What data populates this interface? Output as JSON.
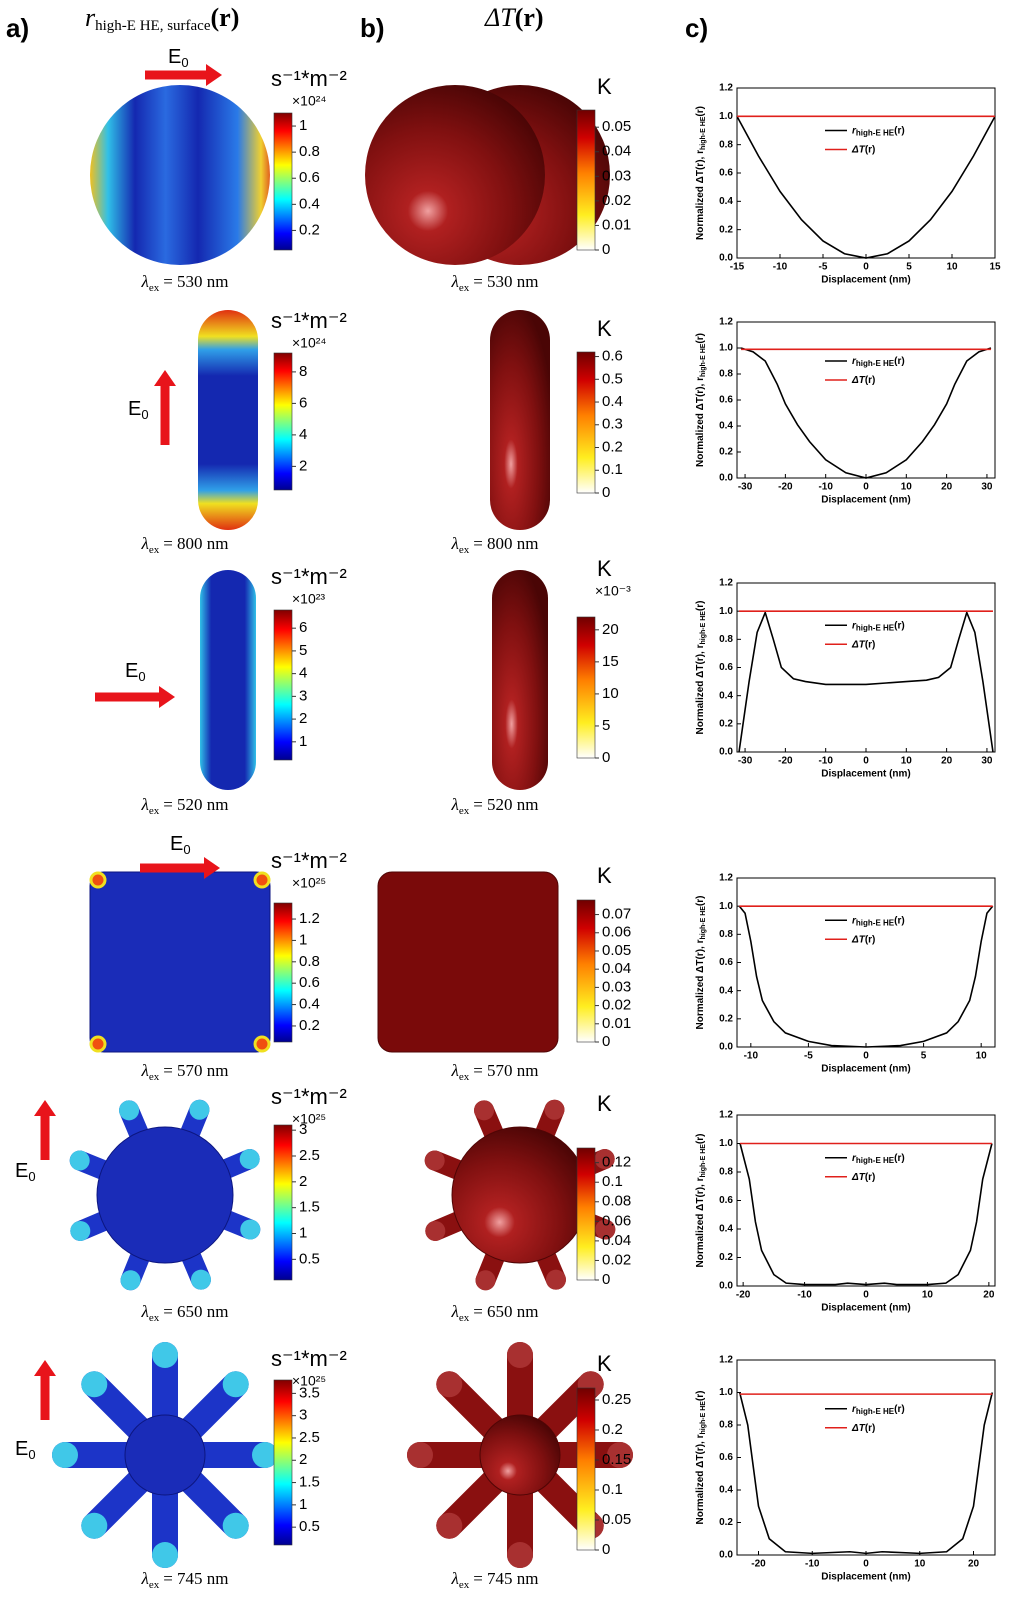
{
  "panel_labels": [
    "a)",
    "b)",
    "c)"
  ],
  "column_a_title": {
    "symbol": "r",
    "sub": "high-E HE, surface",
    "arg": "(r)"
  },
  "column_b_title": {
    "symbol": "ΔT",
    "arg": "(r)"
  },
  "field_label": {
    "base": "E",
    "sub": "0"
  },
  "rows": [
    {
      "wavelength": {
        "symbol": "λ",
        "sub": "ex",
        "rest": "= 530 nm"
      },
      "colorbar_a": {
        "unit": "s⁻¹*m⁻²",
        "multiplier": "×10²⁴",
        "clim": [
          0.05,
          1.1
        ],
        "ticks": [
          0.2,
          0.4,
          0.6,
          0.8,
          1
        ]
      },
      "colorbar_b": {
        "unit": "K",
        "clim": [
          0,
          0.057
        ],
        "ticks": [
          0,
          0.01,
          0.02,
          0.03,
          0.04,
          0.05
        ]
      }
    },
    {
      "wavelength": {
        "symbol": "λ",
        "sub": "ex",
        "rest": "= 800 nm"
      },
      "colorbar_a": {
        "unit": "s⁻¹*m⁻²",
        "multiplier": "×10²⁴",
        "clim": [
          0.5,
          9.2
        ],
        "ticks": [
          2,
          4,
          6,
          8
        ]
      },
      "colorbar_b": {
        "unit": "K",
        "clim": [
          0,
          0.62
        ],
        "ticks": [
          0,
          0.1,
          0.2,
          0.3,
          0.4,
          0.5,
          0.6
        ]
      }
    },
    {
      "wavelength": {
        "symbol": "λ",
        "sub": "ex",
        "rest": "= 520 nm"
      },
      "colorbar_a": {
        "unit": "s⁻¹*m⁻²",
        "multiplier": "×10²³",
        "clim": [
          0.2,
          6.8
        ],
        "ticks": [
          1,
          2,
          3,
          4,
          5,
          6
        ]
      },
      "colorbar_b": {
        "unit": "K",
        "multiplier": "×10⁻³",
        "clim": [
          0,
          22
        ],
        "ticks": [
          0,
          5,
          10,
          15,
          20
        ]
      }
    },
    {
      "wavelength": {
        "symbol": "λ",
        "sub": "ex",
        "rest": "= 570 nm"
      },
      "colorbar_a": {
        "unit": "s⁻¹*m⁻²",
        "multiplier": "×10²⁵",
        "clim": [
          0.05,
          1.35
        ],
        "ticks": [
          0.2,
          0.4,
          0.6,
          0.8,
          1,
          1.2
        ]
      },
      "colorbar_b": {
        "unit": "K",
        "clim": [
          0,
          0.078
        ],
        "ticks": [
          0,
          0.01,
          0.02,
          0.03,
          0.04,
          0.05,
          0.06,
          0.07
        ]
      }
    },
    {
      "wavelength": {
        "symbol": "λ",
        "sub": "ex",
        "rest": "= 650 nm"
      },
      "colorbar_a": {
        "unit": "s⁻¹*m⁻²",
        "multiplier": "×10²⁵",
        "clim": [
          0.1,
          3.1
        ],
        "ticks": [
          0.5,
          1,
          1.5,
          2,
          2.5,
          3
        ]
      },
      "colorbar_b": {
        "unit": "K",
        "clim": [
          0,
          0.135
        ],
        "ticks": [
          0,
          0.02,
          0.04,
          0.06,
          0.08,
          0.1,
          0.12
        ]
      }
    },
    {
      "wavelength": {
        "symbol": "λ",
        "sub": "ex",
        "rest": "= 745 nm"
      },
      "colorbar_a": {
        "unit": "s⁻¹*m⁻²",
        "multiplier": "×10²⁵",
        "clim": [
          0.1,
          3.8
        ],
        "ticks": [
          0.5,
          1,
          1.5,
          2,
          2.5,
          3,
          3.5
        ]
      },
      "colorbar_b": {
        "unit": "K",
        "clim": [
          0,
          0.27
        ],
        "ticks": [
          0,
          0.05,
          0.1,
          0.15,
          0.2,
          0.25
        ]
      }
    }
  ],
  "chart_data": [
    {
      "type": "line",
      "xlabel": "Displacement (nm)",
      "ylabel": {
        "text": "Normalized ΔT(r), r",
        "sub": "high-E HE",
        "rest": "(r)"
      },
      "x": [
        -15,
        -12.5,
        -10,
        -7.5,
        -5,
        -2.5,
        0,
        2.5,
        5,
        7.5,
        10,
        12.5,
        15
      ],
      "xlim": [
        -15,
        15
      ],
      "xticks": [
        -15,
        -10,
        -5,
        0,
        5,
        10,
        15
      ],
      "ylim": [
        0,
        1.2
      ],
      "yticks": [
        {
          "value": 0,
          "label": "0.0"
        },
        0.2,
        0.4,
        0.6,
        0.8,
        {
          "value": 1,
          "label": "1.0"
        },
        1.2
      ],
      "legend": "upper right",
      "series": [
        {
          "name": {
            "base": "r",
            "sub": "high-E HE",
            "arg": "(r)"
          },
          "color": "#000000",
          "values": [
            1.0,
            0.72,
            0.47,
            0.27,
            0.12,
            0.03,
            0,
            0.03,
            0.12,
            0.27,
            0.47,
            0.72,
            1.0
          ]
        },
        {
          "name": {
            "base": "ΔT",
            "arg": "(r)"
          },
          "color": "#e0201b",
          "values": [
            1,
            1,
            1,
            1,
            1,
            1,
            1,
            1,
            1,
            1,
            1,
            1,
            1
          ]
        }
      ]
    },
    {
      "type": "line",
      "xlabel": "Displacement (nm)",
      "ylabel": {
        "text": "Normalized ΔT(r), r",
        "sub": "high-E HE",
        "rest": "(r)"
      },
      "x": [
        -31,
        -28,
        -25,
        -22,
        -20,
        -17,
        -14,
        -10,
        -5,
        0,
        5,
        10,
        14,
        17,
        20,
        22,
        25,
        28,
        31
      ],
      "xlim": [
        -32,
        32
      ],
      "xticks": [
        -30,
        -20,
        -10,
        0,
        10,
        20,
        30
      ],
      "ylim": [
        0,
        1.2
      ],
      "yticks": [
        {
          "value": 0,
          "label": "0.0"
        },
        0.2,
        0.4,
        0.6,
        0.8,
        {
          "value": 1,
          "label": "1.0"
        },
        1.2
      ],
      "legend": "upper right",
      "series": [
        {
          "name": {
            "base": "r",
            "sub": "high-E HE",
            "arg": "(r)"
          },
          "color": "#000000",
          "values": [
            1.0,
            0.97,
            0.9,
            0.72,
            0.57,
            0.41,
            0.28,
            0.14,
            0.04,
            0,
            0.04,
            0.14,
            0.28,
            0.41,
            0.57,
            0.72,
            0.9,
            0.97,
            1.0
          ]
        },
        {
          "name": {
            "base": "ΔT",
            "arg": "(r)"
          },
          "color": "#e0201b",
          "values": [
            0.99,
            0.99,
            0.99,
            0.99,
            0.99,
            0.99,
            0.99,
            0.99,
            0.99,
            0.99,
            0.99,
            0.99,
            0.99,
            0.99,
            0.99,
            0.99,
            0.99,
            0.99,
            0.99
          ]
        }
      ]
    },
    {
      "type": "line",
      "xlabel": "Displacement (nm)",
      "ylabel": {
        "text": "Normalized ΔT(r), r",
        "sub": "high-E HE",
        "rest": "(r)"
      },
      "x": [
        -31.5,
        -29,
        -27,
        -25,
        -23,
        -21,
        -18,
        -15,
        -10,
        -5,
        0,
        5,
        10,
        15,
        18,
        21,
        23,
        25,
        27,
        29,
        31.5
      ],
      "xlim": [
        -32,
        32
      ],
      "xticks": [
        -30,
        -20,
        -10,
        0,
        10,
        20,
        30
      ],
      "ylim": [
        0,
        1.2
      ],
      "yticks": [
        {
          "value": 0,
          "label": "0.0"
        },
        0.2,
        0.4,
        0.6,
        0.8,
        {
          "value": 1,
          "label": "1.0"
        },
        1.2
      ],
      "legend": "upper right",
      "series": [
        {
          "name": {
            "base": "r",
            "sub": "high-E HE",
            "arg": "(r)"
          },
          "color": "#000000",
          "values": [
            0,
            0.5,
            0.85,
            0.99,
            0.8,
            0.6,
            0.52,
            0.5,
            0.48,
            0.48,
            0.48,
            0.49,
            0.5,
            0.51,
            0.53,
            0.6,
            0.8,
            0.99,
            0.85,
            0.5,
            0
          ]
        },
        {
          "name": {
            "base": "ΔT",
            "arg": "(r)"
          },
          "color": "#e0201b",
          "values": [
            1,
            1,
            1,
            1,
            1,
            1,
            1,
            1,
            1,
            1,
            1,
            1,
            1,
            1,
            1,
            1,
            1,
            1,
            1,
            1,
            1
          ]
        }
      ]
    },
    {
      "type": "line",
      "xlabel": "Displacement (nm)",
      "ylabel": {
        "text": "Normalized ΔT(r), r",
        "sub": "high-E HE",
        "rest": "(r)"
      },
      "x": [
        -11,
        -10.5,
        -10,
        -9.5,
        -9,
        -8,
        -7,
        -5,
        -3,
        0,
        3,
        5,
        7,
        8,
        9,
        9.5,
        10,
        10.5,
        11
      ],
      "xlim": [
        -11.2,
        11.2
      ],
      "xticks": [
        -10,
        -5,
        0,
        5,
        10
      ],
      "ylim": [
        0,
        1.2
      ],
      "yticks": [
        {
          "value": 0,
          "label": "0.0"
        },
        0.2,
        0.4,
        0.6,
        0.8,
        {
          "value": 1,
          "label": "1.0"
        },
        1.2
      ],
      "legend": "upper right",
      "series": [
        {
          "name": {
            "base": "r",
            "sub": "high-E HE",
            "arg": "(r)"
          },
          "color": "#000000",
          "values": [
            1.0,
            0.95,
            0.75,
            0.5,
            0.33,
            0.18,
            0.1,
            0.04,
            0.01,
            0,
            0.01,
            0.04,
            0.1,
            0.18,
            0.33,
            0.5,
            0.75,
            0.95,
            1.0
          ]
        },
        {
          "name": {
            "base": "ΔT",
            "arg": "(r)"
          },
          "color": "#e0201b",
          "values": [
            1,
            1,
            1,
            1,
            1,
            1,
            1,
            1,
            1,
            1,
            1,
            1,
            1,
            1,
            1,
            1,
            1,
            1,
            1
          ]
        }
      ]
    },
    {
      "type": "line",
      "xlabel": "Displacement (nm)",
      "ylabel": {
        "text": "Normalized ΔT(r), r",
        "sub": "high-E HE",
        "rest": "(r)"
      },
      "x": [
        -20.5,
        -19,
        -18,
        -17,
        -15,
        -13,
        -10,
        -5,
        -3,
        0,
        3,
        5,
        10,
        13,
        15,
        17,
        18,
        19,
        20.5
      ],
      "xlim": [
        -21,
        21
      ],
      "xticks": [
        -20,
        -10,
        0,
        10,
        20
      ],
      "ylim": [
        0,
        1.2
      ],
      "yticks": [
        {
          "value": 0,
          "label": "0.0"
        },
        0.2,
        0.4,
        0.6,
        0.8,
        {
          "value": 1,
          "label": "1.0"
        },
        1.2
      ],
      "legend": "upper right",
      "series": [
        {
          "name": {
            "base": "r",
            "sub": "high-E HE",
            "arg": "(r)"
          },
          "color": "#000000",
          "values": [
            1.0,
            0.75,
            0.45,
            0.25,
            0.08,
            0.02,
            0.01,
            0.01,
            0.02,
            0.01,
            0.02,
            0.01,
            0.01,
            0.02,
            0.08,
            0.25,
            0.45,
            0.75,
            1.0
          ]
        },
        {
          "name": {
            "base": "ΔT",
            "arg": "(r)"
          },
          "color": "#e0201b",
          "values": [
            1,
            1,
            1,
            1,
            1,
            1,
            1,
            1,
            1,
            1,
            1,
            1,
            1,
            1,
            1,
            1,
            1,
            1,
            1
          ]
        }
      ]
    },
    {
      "type": "line",
      "xlabel": "Displacement (nm)",
      "ylabel": {
        "text": "Normalized ΔT(r), r",
        "sub": "high-E HE",
        "rest": "(r)"
      },
      "x": [
        -23.5,
        -22,
        -21,
        -20,
        -18,
        -15,
        -10,
        -3,
        0,
        3,
        10,
        15,
        18,
        20,
        21,
        22,
        23.5
      ],
      "xlim": [
        -24,
        24
      ],
      "xticks": [
        -20,
        -10,
        0,
        10,
        20
      ],
      "ylim": [
        0,
        1.2
      ],
      "yticks": [
        {
          "value": 0,
          "label": "0.0"
        },
        0.2,
        0.4,
        0.6,
        0.8,
        {
          "value": 1,
          "label": "1.0"
        },
        1.2
      ],
      "legend": "upper right",
      "series": [
        {
          "name": {
            "base": "r",
            "sub": "high-E HE",
            "arg": "(r)"
          },
          "color": "#000000",
          "values": [
            1.0,
            0.8,
            0.55,
            0.3,
            0.1,
            0.02,
            0.01,
            0.02,
            0.01,
            0.02,
            0.01,
            0.02,
            0.1,
            0.3,
            0.55,
            0.8,
            1.0
          ]
        },
        {
          "name": {
            "base": "ΔT",
            "arg": "(r)"
          },
          "color": "#e0201b",
          "values": [
            0.99,
            0.99,
            0.99,
            0.99,
            0.99,
            0.99,
            0.99,
            0.99,
            0.99,
            0.99,
            0.99,
            0.99,
            0.99,
            0.99,
            0.99,
            0.99,
            0.99
          ]
        }
      ]
    }
  ]
}
